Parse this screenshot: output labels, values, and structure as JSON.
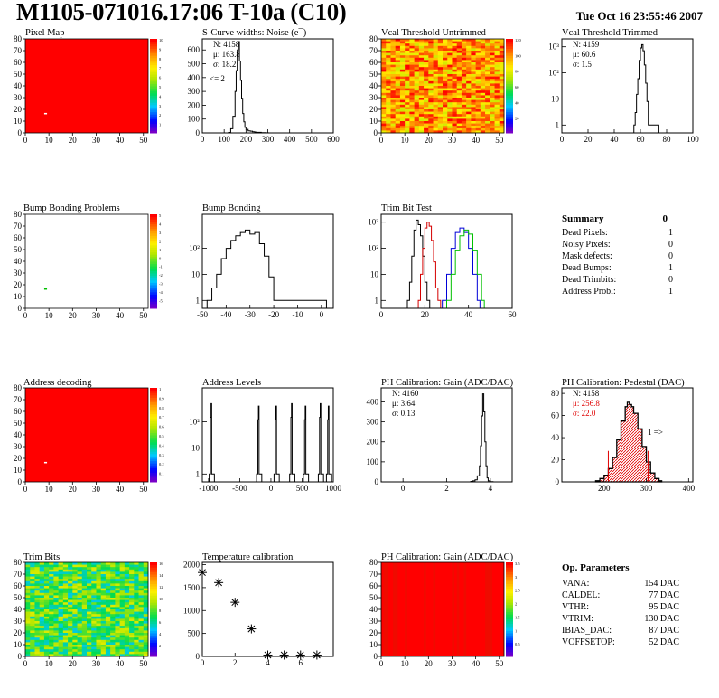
{
  "header": {
    "title": "M1105-071016.17:06 T-10a (C10)",
    "date": "Tue Oct 16 23:55:46 2007"
  },
  "colors": {
    "map_red": "#ff0000",
    "line_black": "#000000",
    "line_red": "#d40000",
    "line_green": "#00c000",
    "line_blue": "#0000d8",
    "hatch_red": "#e00000"
  },
  "chart_data": [
    {
      "id": "pixel-map",
      "type": "heatmap",
      "title": "Pixel Map",
      "xlim": [
        0,
        52
      ],
      "ylim": [
        0,
        80
      ],
      "xticks": [
        0,
        10,
        20,
        30,
        40,
        50
      ],
      "yticks": [
        0,
        10,
        20,
        30,
        40,
        50,
        60,
        70,
        80
      ],
      "zticks": [
        1,
        2,
        3,
        4,
        5,
        6,
        7,
        8,
        9,
        10
      ],
      "fill": "uniform red (10)",
      "anomalies": [
        {
          "col": 8,
          "row": 16,
          "value": 0
        }
      ]
    },
    {
      "id": "scurve-noise",
      "type": "bar",
      "title": "S-Curve widths: Noise (e¯)",
      "xlim": [
        0,
        600
      ],
      "ylim": [
        0,
        680
      ],
      "xticks": [
        0,
        100,
        200,
        300,
        400,
        500,
        600
      ],
      "yticks": [
        0,
        100,
        200,
        300,
        400,
        500,
        600
      ],
      "stats": [
        "N: 4158",
        "μ: 163.8",
        "σ: 18.2"
      ],
      "annotation": "<= 2",
      "x": [
        120,
        130,
        140,
        150,
        155,
        160,
        165,
        170,
        175,
        180,
        185,
        190,
        195,
        200,
        210,
        220,
        230,
        240,
        250,
        270,
        290
      ],
      "values": [
        3,
        30,
        120,
        300,
        450,
        600,
        660,
        520,
        380,
        250,
        140,
        80,
        40,
        25,
        15,
        12,
        8,
        6,
        4,
        2,
        1
      ]
    },
    {
      "id": "vcal-untrimmed",
      "type": "heatmap",
      "title": "Vcal Threshold Untrimmed",
      "xlim": [
        0,
        52
      ],
      "ylim": [
        0,
        80
      ],
      "xticks": [
        0,
        10,
        20,
        30,
        40,
        50
      ],
      "yticks": [
        0,
        10,
        20,
        30,
        40,
        50,
        60,
        70,
        80
      ],
      "zticks": [
        20,
        40,
        60,
        80,
        100,
        120
      ],
      "fill": "mostly orange / yellow noise, 80-120"
    },
    {
      "id": "vcal-trimmed",
      "type": "bar",
      "title": "Vcal Threshold Trimmed",
      "log_y": true,
      "xlim": [
        0,
        100
      ],
      "ylim": [
        0.5,
        2000
      ],
      "xticks": [
        0,
        20,
        40,
        60,
        80,
        100
      ],
      "yticks": [
        "1",
        "10",
        "10²",
        "10³"
      ],
      "stats": [
        "N: 4159",
        "μ: 60.6",
        "σ: 1.5"
      ],
      "x": [
        55,
        56,
        57,
        58,
        59,
        60,
        61,
        62,
        63,
        64,
        65,
        66,
        72
      ],
      "values": [
        1,
        3,
        15,
        60,
        300,
        900,
        1200,
        700,
        200,
        40,
        8,
        1,
        1
      ]
    },
    {
      "id": "bump-problems",
      "type": "heatmap",
      "title": "Bump Bonding Problems",
      "xlim": [
        0,
        52
      ],
      "ylim": [
        0,
        80
      ],
      "xticks": [
        0,
        10,
        20,
        30,
        40,
        50
      ],
      "yticks": [
        0,
        10,
        20,
        30,
        40,
        50,
        60,
        70,
        80
      ],
      "zticks": [
        -5,
        -4,
        -3,
        -2,
        -1,
        0,
        1,
        2,
        3,
        4,
        5
      ],
      "fill": "empty",
      "anomalies": [
        {
          "col": 8,
          "row": 16,
          "value": 1
        }
      ]
    },
    {
      "id": "bump-bonding",
      "type": "bar",
      "title": "Bump Bonding",
      "log_y": true,
      "xlim": [
        -50,
        5
      ],
      "ylim": [
        0.5,
        2000
      ],
      "xticks": [
        -50,
        -40,
        -30,
        -20,
        -10,
        0
      ],
      "yticks": [
        "1",
        "10",
        "10²"
      ],
      "x": [
        -48,
        -46,
        -44,
        -42,
        -40,
        -38,
        -36,
        -34,
        -32,
        -30,
        -28,
        -26,
        -24,
        -22,
        -20,
        1
      ],
      "values": [
        1,
        3,
        10,
        40,
        100,
        200,
        300,
        400,
        500,
        350,
        400,
        150,
        50,
        8,
        1,
        1
      ]
    },
    {
      "id": "trim-bit-test",
      "type": "line",
      "title": "Trim Bit Test",
      "log_y": true,
      "xlim": [
        0,
        60
      ],
      "ylim": [
        0.5,
        2000
      ],
      "xticks": [
        0,
        20,
        40,
        60
      ],
      "yticks": [
        "1",
        "10",
        "10²",
        "10³"
      ],
      "series": [
        {
          "color": "black",
          "x": [
            12,
            13,
            14,
            15,
            16,
            17,
            18,
            19,
            20,
            21
          ],
          "values": [
            1,
            5,
            50,
            500,
            1200,
            800,
            300,
            50,
            5,
            1
          ]
        },
        {
          "color": "red",
          "x": [
            17,
            18,
            19,
            20,
            21,
            22,
            23,
            24,
            25,
            26
          ],
          "values": [
            1,
            10,
            100,
            600,
            1000,
            700,
            200,
            30,
            3,
            1
          ]
        },
        {
          "color": "blue",
          "x": [
            28,
            30,
            32,
            34,
            36,
            38,
            40,
            42,
            44
          ],
          "values": [
            1,
            10,
            100,
            400,
            600,
            400,
            100,
            10,
            1
          ]
        },
        {
          "color": "green",
          "x": [
            30,
            32,
            34,
            36,
            38,
            40,
            42,
            44,
            46
          ],
          "values": [
            1,
            10,
            80,
            300,
            500,
            350,
            80,
            10,
            1
          ]
        }
      ]
    },
    {
      "id": "address-decoding",
      "type": "heatmap",
      "title": "Address decoding",
      "xlim": [
        0,
        52
      ],
      "ylim": [
        0,
        80
      ],
      "xticks": [
        0,
        10,
        20,
        30,
        40,
        50
      ],
      "yticks": [
        0,
        10,
        20,
        30,
        40,
        50,
        60,
        70,
        80
      ],
      "zticks": [
        0.1,
        0.2,
        0.3,
        0.4,
        0.5,
        0.6,
        0.7,
        0.8,
        0.9,
        1
      ],
      "fill": "uniform red (1)",
      "anomalies": [
        {
          "col": 8,
          "row": 16,
          "value": 0
        }
      ]
    },
    {
      "id": "address-levels",
      "type": "bar",
      "title": "Address Levels",
      "log_y": true,
      "xlim": [
        -1100,
        1000
      ],
      "ylim": [
        0.5,
        2000
      ],
      "xticks": [
        -1000,
        -500,
        0,
        500,
        1000
      ],
      "yticks": [
        "1",
        "10",
        "10²"
      ],
      "peaks": [
        -960,
        -200,
        80,
        330,
        550,
        790,
        920
      ],
      "peak_values": [
        500,
        400,
        400,
        500,
        400,
        500,
        400
      ]
    },
    {
      "id": "ph-gain",
      "type": "bar",
      "title": "PH Calibration: Gain (ADC/DAC)",
      "xlim": [
        -1,
        5
      ],
      "ylim": [
        0,
        470
      ],
      "xticks": [
        0,
        2,
        4
      ],
      "yticks": [
        0,
        100,
        200,
        300,
        400
      ],
      "stats": [
        "N: 4160",
        "μ: 3.64",
        "σ: 0.13"
      ],
      "x": [
        3.1,
        3.2,
        3.3,
        3.4,
        3.5,
        3.55,
        3.6,
        3.65,
        3.7,
        3.75,
        3.8,
        3.85,
        3.9,
        4.0
      ],
      "values": [
        2,
        5,
        10,
        30,
        80,
        180,
        330,
        440,
        350,
        200,
        80,
        20,
        5,
        1
      ]
    },
    {
      "id": "ph-pedestal",
      "type": "bar",
      "title": "PH Calibration: Pedestal (DAC)",
      "xlim": [
        100,
        410
      ],
      "ylim": [
        0,
        85
      ],
      "xticks": [
        200,
        300,
        400
      ],
      "yticks": [
        0,
        20,
        40,
        60,
        80
      ],
      "stats": [
        "N: 4158",
        "μ: 256.8",
        "σ: 22.0"
      ],
      "annotation": "1 =>",
      "x": [
        180,
        190,
        200,
        210,
        220,
        230,
        240,
        250,
        255,
        260,
        265,
        270,
        280,
        290,
        300,
        310,
        320,
        330
      ],
      "values": [
        1,
        3,
        6,
        12,
        22,
        38,
        55,
        68,
        72,
        70,
        68,
        62,
        48,
        32,
        18,
        8,
        3,
        1
      ]
    },
    {
      "id": "trim-bits",
      "type": "heatmap",
      "title": "Trim Bits",
      "xlim": [
        0,
        52
      ],
      "ylim": [
        0,
        80
      ],
      "xticks": [
        0,
        10,
        20,
        30,
        40,
        50
      ],
      "yticks": [
        0,
        10,
        20,
        30,
        40,
        50,
        60,
        70,
        80
      ],
      "zticks": [
        2,
        4,
        6,
        8,
        10,
        12,
        14,
        16
      ],
      "fill": "mixed green / yellow / cyan noise"
    },
    {
      "id": "temperature",
      "type": "scatter",
      "title": "Temperature calibration",
      "xlim": [
        0,
        8
      ],
      "ylim": [
        0,
        2050
      ],
      "xticks": [
        0,
        2,
        4,
        6
      ],
      "yticks": [
        0,
        500,
        1000,
        1500,
        2000
      ],
      "x": [
        0,
        1,
        2,
        3,
        4,
        5,
        6,
        7
      ],
      "values": [
        1830,
        1610,
        1180,
        600,
        30,
        30,
        30,
        30
      ]
    },
    {
      "id": "ph-gain-map",
      "type": "heatmap",
      "title": "PH Calibration: Gain (ADC/DAC)",
      "xlim": [
        0,
        52
      ],
      "ylim": [
        0,
        80
      ],
      "xticks": [
        0,
        10,
        20,
        30,
        40,
        50
      ],
      "yticks": [
        0,
        10,
        20,
        30,
        40,
        50,
        60,
        70,
        80
      ],
      "zticks": [
        0.5,
        1,
        1.5,
        2,
        2.5,
        3,
        3.5
      ],
      "fill": "uniform red with darker vertical streaks"
    }
  ],
  "summary": {
    "title": "Summary",
    "value": "0",
    "rows": [
      {
        "label": "Dead Pixels:",
        "value": "1"
      },
      {
        "label": "Noisy Pixels:",
        "value": "0"
      },
      {
        "label": "Mask defects:",
        "value": "0"
      },
      {
        "label": "Dead Bumps:",
        "value": "1"
      },
      {
        "label": "Dead Trimbits:",
        "value": "0"
      },
      {
        "label": "Address Probl:",
        "value": "1"
      }
    ]
  },
  "op_params": {
    "title": "Op. Parameters",
    "rows": [
      {
        "label": "VANA:",
        "value": "154 DAC"
      },
      {
        "label": "CALDEL:",
        "value": "77 DAC"
      },
      {
        "label": "VTHR:",
        "value": "95 DAC"
      },
      {
        "label": "VTRIM:",
        "value": "130 DAC"
      },
      {
        "label": "IBIAS_DAC:",
        "value": "87 DAC"
      },
      {
        "label": "VOFFSETOP:",
        "value": "52 DAC"
      }
    ]
  }
}
